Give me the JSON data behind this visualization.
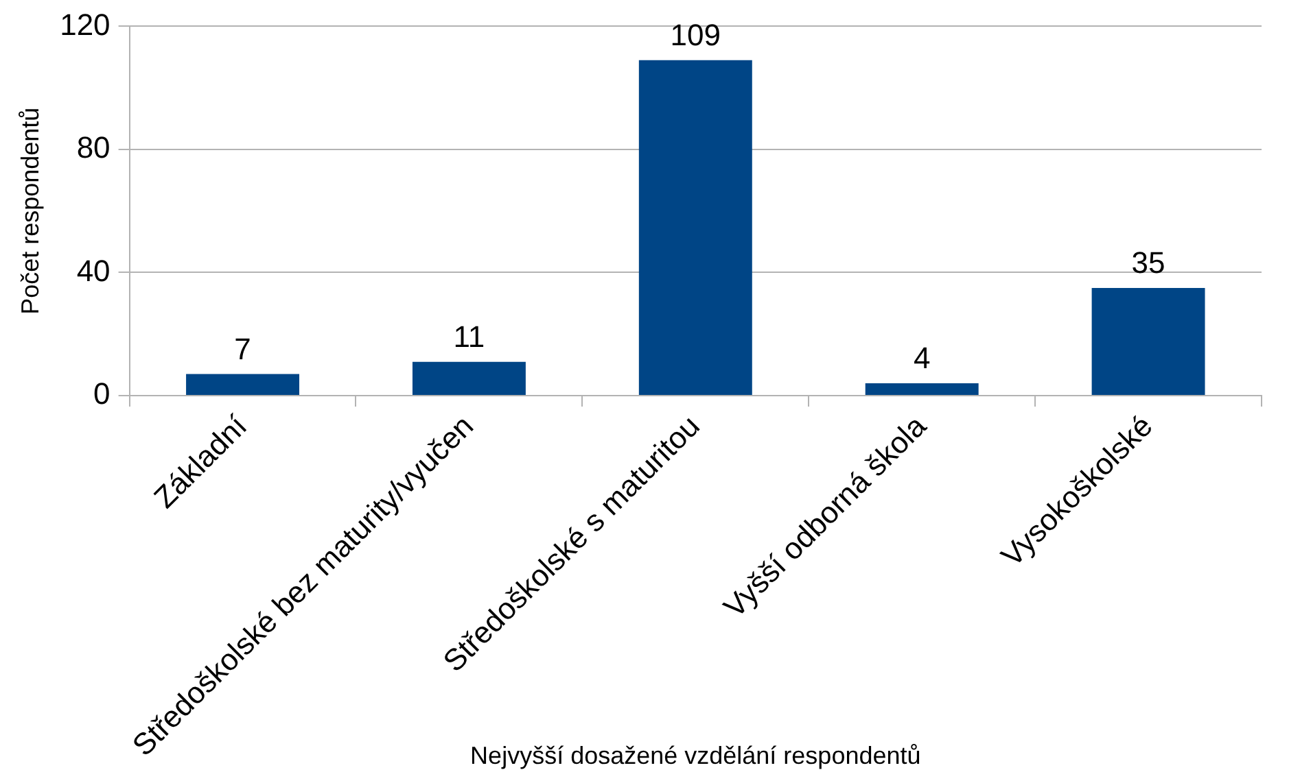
{
  "chart_data": {
    "type": "bar",
    "xlabel": "Nejvyšší dosažené vzdělání respondentů",
    "ylabel": "Počet respondentů",
    "categories": [
      "Základní",
      "Středoškolské bez maturity/vyučen",
      "Středoškolské s maturitou",
      "Vyšší odborná škola",
      "Vysokoškolské"
    ],
    "values": [
      7,
      11,
      109,
      4,
      35
    ],
    "color": "#004586",
    "ylim": [
      0,
      120
    ],
    "yticks": [
      0,
      40,
      80,
      120
    ],
    "grid": "y",
    "data_labels": true,
    "legend": false
  }
}
